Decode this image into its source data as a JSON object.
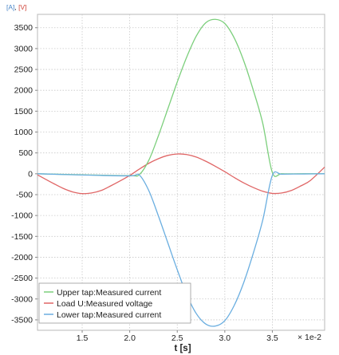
{
  "chart_data": {
    "type": "line",
    "y_units": [
      {
        "text": "[A]",
        "color": "#4a86c8"
      },
      {
        "text": ", ",
        "color": "#222222"
      },
      {
        "text": "[V]",
        "color": "#d0443a"
      }
    ],
    "xlabel": "t [s]",
    "x_multiplier": "× 1e-2",
    "xlim": [
      1.03,
      4.05
    ],
    "ylim": [
      -3750,
      3820
    ],
    "x_ticks": [
      1.5,
      2.0,
      2.5,
      3.0,
      3.5
    ],
    "x_tick_labels": [
      "1.5",
      "2.0",
      "2.5",
      "3.0",
      "3.5"
    ],
    "y_ticks": [
      3500,
      3000,
      2500,
      2000,
      1500,
      1000,
      500,
      0,
      -500,
      -1000,
      -1500,
      -2000,
      -2500,
      -3000,
      -3500
    ],
    "y_tick_labels": [
      "3500",
      "3000",
      "2500",
      "2000",
      "1500",
      "1000",
      "500",
      "0",
      "-500",
      "-1000",
      "-1500",
      "-2000",
      "-2500",
      "-3000",
      "-3500"
    ],
    "grid": true,
    "legend_position": "bottom-left",
    "series": [
      {
        "name": "Upper tap:Measured current",
        "color": "#7ccf7c",
        "x": [
          1.03,
          1.5,
          2.0,
          2.1,
          2.2,
          2.3,
          2.4,
          2.5,
          2.6,
          2.7,
          2.8,
          2.9,
          3.0,
          3.1,
          3.2,
          3.3,
          3.4,
          3.5,
          3.6,
          3.8,
          4.05
        ],
        "y": [
          0,
          -25,
          -45,
          -20,
          320,
          900,
          1550,
          2200,
          2800,
          3300,
          3620,
          3700,
          3600,
          3250,
          2700,
          2000,
          1200,
          30,
          0,
          0,
          0
        ]
      },
      {
        "name": "Load U:Measured voltage",
        "color": "#e06666",
        "x": [
          1.03,
          1.2,
          1.3,
          1.4,
          1.5,
          1.6,
          1.7,
          1.8,
          1.9,
          2.0,
          2.1,
          2.2,
          2.3,
          2.4,
          2.5,
          2.6,
          2.7,
          2.8,
          2.9,
          3.0,
          3.1,
          3.2,
          3.3,
          3.4,
          3.5,
          3.6,
          3.7,
          3.8,
          3.9,
          4.05
        ],
        "y": [
          -25,
          -235,
          -350,
          -435,
          -475,
          -460,
          -400,
          -290,
          -170,
          -40,
          110,
          250,
          360,
          440,
          475,
          460,
          400,
          300,
          180,
          50,
          -90,
          -220,
          -330,
          -420,
          -470,
          -460,
          -400,
          -290,
          -160,
          160
        ]
      },
      {
        "name": "Lower tap:Measured current",
        "color": "#6aaee0",
        "x": [
          1.03,
          1.5,
          2.0,
          2.1,
          2.2,
          2.3,
          2.4,
          2.5,
          2.6,
          2.7,
          2.8,
          2.9,
          3.0,
          3.1,
          3.2,
          3.3,
          3.4,
          3.5,
          3.6,
          3.8,
          4.05
        ],
        "y": [
          0,
          -30,
          -50,
          -30,
          -400,
          -1000,
          -1650,
          -2300,
          -2900,
          -3350,
          -3600,
          -3650,
          -3520,
          -3150,
          -2600,
          -1900,
          -1100,
          -40,
          -10,
          -5,
          0
        ]
      }
    ]
  }
}
